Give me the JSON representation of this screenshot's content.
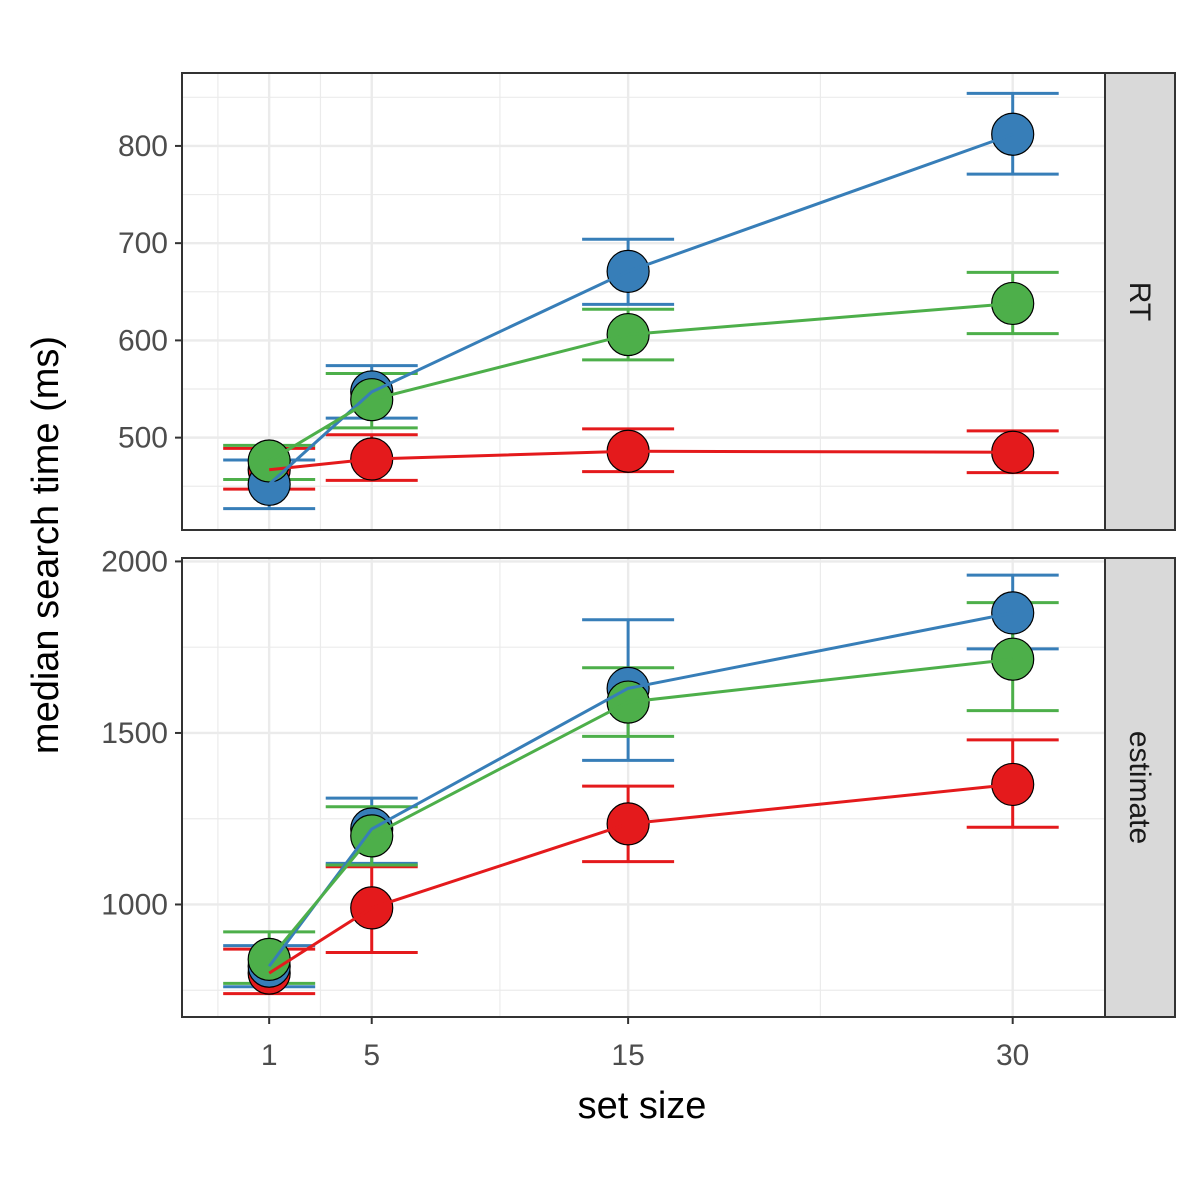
{
  "chart_data": {
    "type": "line",
    "xlabel": "set size",
    "ylabel": "median search time (ms)",
    "x_ticks": [
      1,
      5,
      15,
      30
    ],
    "xlim": [
      -2.4,
      33.6
    ],
    "grid": true,
    "legend": "none",
    "colors": {
      "red": "#E41A1C",
      "blue": "#377EB8",
      "green": "#4DAF4A"
    },
    "panels": [
      {
        "strip": "RT",
        "ylim": [
          405,
          875
        ],
        "y_ticks": [
          500,
          600,
          700,
          800
        ],
        "series": [
          {
            "color": "#E41A1C",
            "x": [
              1,
              5,
              15,
              30
            ],
            "y": [
              467,
              478,
              486,
              485
            ],
            "ymin": [
              447,
              456,
              465,
              464
            ],
            "ymax": [
              489,
              503,
              509,
              507
            ]
          },
          {
            "color": "#377EB8",
            "x": [
              1,
              5,
              15,
              30
            ],
            "y": [
              452,
              547,
              671,
              812
            ],
            "ymin": [
              427,
              520,
              637,
              771
            ],
            "ymax": [
              477,
              574,
              704,
              854
            ]
          },
          {
            "color": "#4DAF4A",
            "x": [
              1,
              5,
              15,
              30
            ],
            "y": [
              476,
              539,
              606,
              638
            ],
            "ymin": [
              457,
              510,
              580,
              607
            ],
            "ymax": [
              492,
              566,
              632,
              670
            ]
          }
        ]
      },
      {
        "strip": "estimate",
        "ylim": [
          672,
          2010
        ],
        "y_ticks": [
          1000,
          1500,
          2000
        ],
        "series": [
          {
            "color": "#E41A1C",
            "x": [
              1,
              5,
              15,
              30
            ],
            "y": [
              800,
              990,
              1235,
              1350
            ],
            "ymin": [
              740,
              860,
              1125,
              1225
            ],
            "ymax": [
              870,
              1110,
              1345,
              1480
            ]
          },
          {
            "color": "#377EB8",
            "x": [
              1,
              5,
              15,
              30
            ],
            "y": [
              820,
              1220,
              1630,
              1850
            ],
            "ymin": [
              760,
              1120,
              1420,
              1745
            ],
            "ymax": [
              880,
              1310,
              1830,
              1960
            ]
          },
          {
            "color": "#4DAF4A",
            "x": [
              1,
              5,
              15,
              30
            ],
            "y": [
              840,
              1200,
              1590,
              1715
            ],
            "ymin": [
              770,
              1115,
              1490,
              1565
            ],
            "ymax": [
              920,
              1285,
              1690,
              1880
            ]
          }
        ]
      }
    ]
  }
}
